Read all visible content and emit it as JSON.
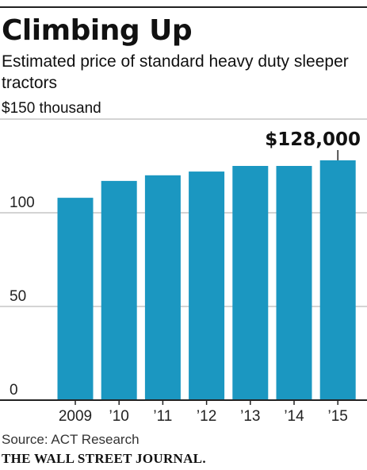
{
  "header": {
    "title": "Climbing Up",
    "subtitle": "Estimated price of standard heavy duty sleeper tractors",
    "unit_label": "$150 thousand"
  },
  "footer": {
    "source": "Source: ACT Research",
    "brand": "THE WALL STREET JOURNAL."
  },
  "colors": {
    "bar": "#1b97c1",
    "grid": "#a9a9a9",
    "axis": "#222222"
  },
  "chart_data": {
    "type": "bar",
    "title": "Climbing Up",
    "subtitle": "Estimated price of standard heavy duty sleeper tractors",
    "categories": [
      "2009",
      "’10",
      "’11",
      "’12",
      "’13",
      "’14",
      "’15"
    ],
    "values": [
      108,
      117,
      120,
      122,
      125,
      125,
      128
    ],
    "unit": "thousand dollars",
    "ylim": [
      0,
      150
    ],
    "yticks": [
      0,
      50,
      100
    ],
    "ytick_labels": [
      "0",
      "50",
      "100"
    ],
    "grid": true,
    "annotation": {
      "category": "’15",
      "text": "$128,000"
    }
  }
}
